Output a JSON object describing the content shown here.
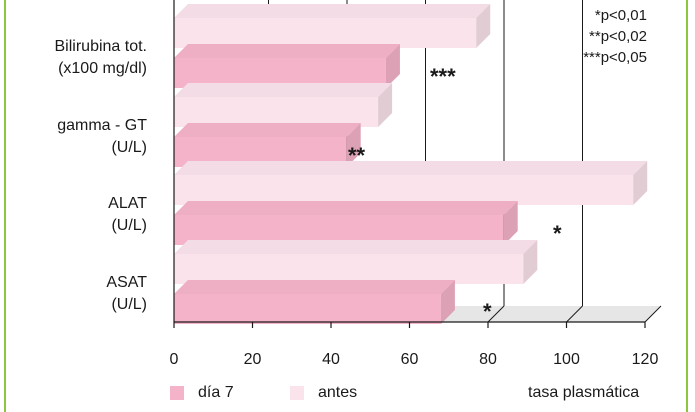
{
  "chart_data": {
    "type": "bar",
    "orientation": "horizontal",
    "categories": [
      {
        "line1": "Bilirubina tot.",
        "line2": "(x100 mg/dl)",
        "significance": "***"
      },
      {
        "line1": "gamma - GT",
        "line2": "(U/L)",
        "significance": "**"
      },
      {
        "line1": "ALAT",
        "line2": "(U/L)",
        "significance": "*"
      },
      {
        "line1": "ASAT",
        "line2": "(U/L)",
        "significance": "*"
      }
    ],
    "series": [
      {
        "name": "antes",
        "values": [
          77,
          52,
          117,
          89
        ],
        "color": "#fbe3ec"
      },
      {
        "name": "día 7",
        "values": [
          54,
          44,
          84,
          68
        ],
        "color": "#f5b3ca"
      }
    ],
    "xlim": [
      0,
      120
    ],
    "xticks": [
      "0",
      "20",
      "40",
      "60",
      "80",
      "100",
      "120"
    ],
    "xlabel": "tasa plasmática",
    "gridlines": [
      20,
      40,
      60,
      80,
      100
    ],
    "significance_notes": [
      "*p<0,01",
      "**p<0,02",
      "***p<0,05"
    ],
    "legend": [
      {
        "label": "día 7",
        "color": "#f5b3ca"
      },
      {
        "label": "antes",
        "color": "#fbe3ec"
      }
    ],
    "legend_position": "bottom"
  }
}
